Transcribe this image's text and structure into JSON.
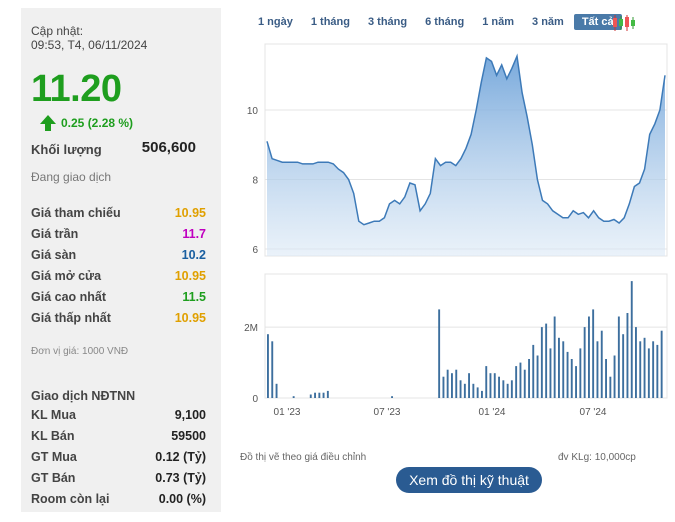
{
  "info": {
    "update_label": "Cập nhật:",
    "update_time": "09:53, T4, 06/11/2024",
    "price": "11.20",
    "change": "0.25 (2.28 %)",
    "volume_label": "Khối lượng",
    "volume_value": "506,600",
    "status": "Đang giao dịch"
  },
  "prices": [
    {
      "label": "Giá tham chiếu",
      "value": "10.95",
      "color": "#e0a000"
    },
    {
      "label": "Giá trần",
      "value": "11.7",
      "color": "#c000c0"
    },
    {
      "label": "Giá sàn",
      "value": "10.2",
      "color": "#1a5fa0"
    },
    {
      "label": "Giá mở cửa",
      "value": "10.95",
      "color": "#e0a000"
    },
    {
      "label": "Giá cao nhất",
      "value": "11.5",
      "color": "#1e9e1e"
    },
    {
      "label": "Giá thấp nhất",
      "value": "10.95",
      "color": "#e0a000"
    }
  ],
  "unit_note": "Đơn vị giá: 1000 VNĐ",
  "foreign": {
    "title": "Giao dịch NĐTNN",
    "rows": [
      {
        "label": "KL Mua",
        "value": "9,100"
      },
      {
        "label": "KL Bán",
        "value": "59500"
      },
      {
        "label": "GT Mua",
        "value": "0.12 (Tỷ)"
      },
      {
        "label": "GT Bán",
        "value": "0.73 (Tỷ)"
      },
      {
        "label": "Room còn lại",
        "value": "0.00 (%)"
      }
    ]
  },
  "tabs": [
    "1 ngày",
    "1 tháng",
    "3 tháng",
    "6 tháng",
    "1 năm",
    "3 năm",
    "Tất cả"
  ],
  "active_tab": 6,
  "chart_note": "Đồ thị vẽ theo giá điều chỉnh",
  "vol_note": "đv KLg: 10,000cp",
  "tech_button": "Xem đồ thị kỹ thuật",
  "chart_data": [
    {
      "type": "area",
      "y_ticks": [
        "10",
        "8",
        "6"
      ],
      "y_tick_values": [
        10,
        8,
        6
      ],
      "ylim": [
        5.8,
        11.9
      ],
      "values": [
        9.1,
        8.6,
        8.55,
        8.5,
        8.5,
        8.5,
        8.5,
        8.45,
        8.45,
        8.45,
        8.5,
        8.5,
        8.5,
        8.45,
        8.3,
        8.2,
        8.0,
        7.6,
        6.8,
        6.7,
        6.75,
        6.8,
        6.8,
        6.9,
        7.3,
        7.4,
        7.3,
        7.5,
        7.9,
        7.85,
        7.1,
        7.3,
        7.6,
        8.6,
        8.4,
        8.5,
        8.5,
        8.4,
        8.6,
        8.9,
        9.3,
        10.0,
        10.8,
        11.5,
        11.4,
        11.0,
        11.3,
        10.9,
        11.2,
        11.55,
        10.5,
        9.8,
        9.0,
        8.0,
        7.4,
        7.3,
        7.1,
        7.0,
        6.9,
        6.9,
        7.1,
        7.0,
        7.05,
        6.9,
        7.1,
        6.9,
        6.8,
        6.8,
        6.85,
        6.75,
        6.9,
        7.3,
        7.8,
        7.9,
        8.3,
        9.3,
        9.6,
        10.0,
        11.0
      ]
    },
    {
      "type": "bar",
      "y_ticks": [
        "2M",
        "0"
      ],
      "y_tick_values": [
        200,
        0
      ],
      "x_ticks": [
        "01 '23",
        "07 '23",
        "01 '24",
        "07 '24"
      ],
      "values": [
        180,
        160,
        40,
        0,
        0,
        0,
        5,
        0,
        0,
        0,
        10,
        15,
        15,
        15,
        20,
        0,
        0,
        0,
        0,
        0,
        0,
        0,
        0,
        0,
        0,
        0,
        0,
        0,
        0,
        5,
        0,
        0,
        0,
        0,
        0,
        0,
        0,
        0,
        0,
        0,
        250,
        60,
        80,
        70,
        80,
        50,
        40,
        70,
        40,
        30,
        20,
        90,
        70,
        70,
        60,
        50,
        40,
        50,
        90,
        100,
        80,
        110,
        150,
        120,
        200,
        210,
        140,
        230,
        170,
        160,
        130,
        110,
        90,
        140,
        200,
        230,
        250,
        160,
        190,
        110,
        60,
        120,
        230,
        180,
        240,
        330,
        200,
        160,
        170,
        140,
        160,
        150,
        190
      ]
    }
  ]
}
